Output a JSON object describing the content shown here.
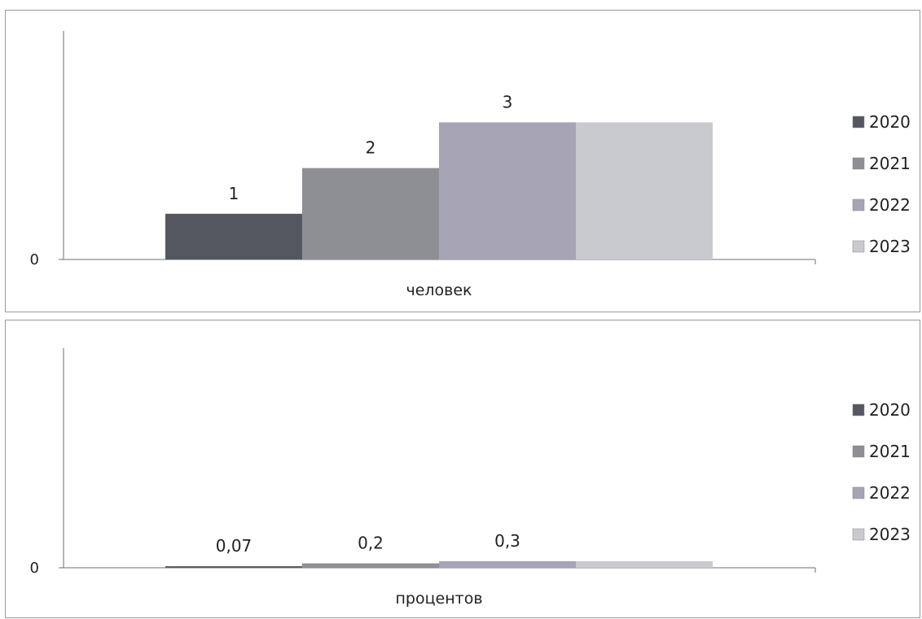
{
  "chart_data": [
    {
      "type": "bar",
      "categories": [
        "человек"
      ],
      "xlabel": "человек",
      "yticks": [
        "0"
      ],
      "ylim": [
        0,
        5
      ],
      "legend_position": "right",
      "series": [
        {
          "name": "2020",
          "values": [
            1
          ],
          "label": "1",
          "color": "#54575f"
        },
        {
          "name": "2021",
          "values": [
            2
          ],
          "label": "2",
          "color": "#8e8f95"
        },
        {
          "name": "2022",
          "values": [
            3
          ],
          "label": "3",
          "color": "#a7a4b5"
        },
        {
          "name": "2023",
          "values": [
            3
          ],
          "label": "",
          "color": "#c9cad0"
        }
      ]
    },
    {
      "type": "bar",
      "categories": [
        "процентов"
      ],
      "xlabel": "процентов",
      "yticks": [
        "0"
      ],
      "ylim": [
        0,
        10
      ],
      "legend_position": "right",
      "series": [
        {
          "name": "2020",
          "values": [
            0.07
          ],
          "label": "0,07",
          "color": "#54575f"
        },
        {
          "name": "2021",
          "values": [
            0.2
          ],
          "label": "0,2",
          "color": "#8e8f95"
        },
        {
          "name": "2022",
          "values": [
            0.3
          ],
          "label": "0,3",
          "color": "#a7a4b5"
        },
        {
          "name": "2023",
          "values": [
            0.3
          ],
          "label": "",
          "color": "#c9cad0"
        }
      ]
    }
  ]
}
